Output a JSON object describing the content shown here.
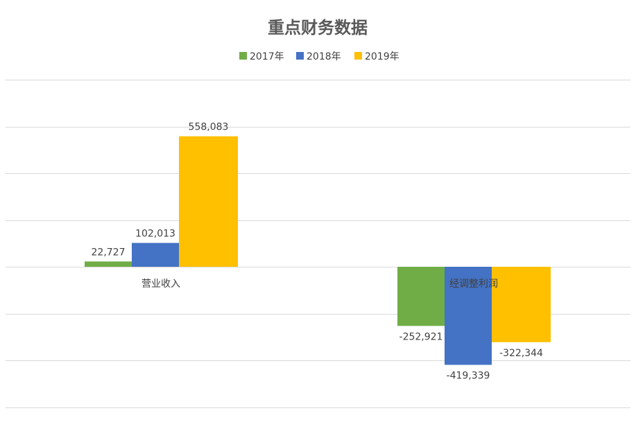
{
  "chart_data": {
    "type": "bar",
    "title": "重点财务数据",
    "categories": [
      "营业收入",
      "经调整利润"
    ],
    "series": [
      {
        "name": "2017年",
        "values": [
          22727,
          -252921
        ],
        "labels": [
          "22,727",
          "-252,921"
        ],
        "color": "#70AD47"
      },
      {
        "name": "2018年",
        "values": [
          102013,
          -419339
        ],
        "labels": [
          "102,013",
          "-419,339"
        ],
        "color": "#4472C4"
      },
      {
        "name": "2019年",
        "values": [
          558083,
          -322344
        ],
        "labels": [
          "558,083",
          "-322,344"
        ],
        "color": "#FFC000"
      }
    ],
    "ylim": [
      -600000,
      800000
    ],
    "ytick_step": 200000,
    "grid": true,
    "legend_position": "top"
  }
}
